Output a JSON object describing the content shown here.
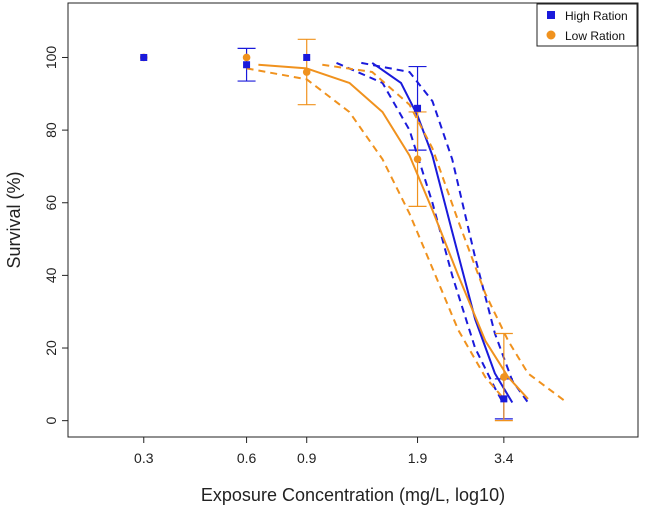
{
  "chart_data": {
    "type": "scatter",
    "title": "",
    "xlabel": "Exposure Concentration (mg/L, log10)",
    "ylabel": "Survival  (%)",
    "x_scale": "log10",
    "xlim": [
      0.18,
      8.4
    ],
    "ylim": [
      -4.5,
      115
    ],
    "x_ticks": [
      0.3,
      0.6,
      0.9,
      1.9,
      3.4
    ],
    "x_tick_labels": [
      "0.3",
      "0.6",
      "0.9",
      "1.9",
      "3.4"
    ],
    "y_ticks": [
      0,
      20,
      40,
      60,
      80,
      100
    ],
    "y_tick_labels": [
      "0",
      "20",
      "40",
      "60",
      "80",
      "100"
    ],
    "grid": false,
    "legend_position": "top-right",
    "series": [
      {
        "name": "High Ration",
        "color": "#1a1adb",
        "marker": "square",
        "x": [
          0.3,
          0.6,
          0.9,
          1.9,
          3.4
        ],
        "y": [
          100,
          98,
          100,
          86,
          6
        ],
        "err_low": [
          0,
          93.5,
          0,
          74.5,
          0.5
        ],
        "err_high": [
          0,
          102.5,
          0,
          97.5,
          11.5
        ],
        "fit": {
          "x": [
            1.4,
            1.7,
            1.9,
            2.1,
            2.4,
            2.8,
            3.2,
            3.6
          ],
          "y": [
            98.5,
            93,
            84,
            73,
            52,
            28,
            13,
            5
          ]
        },
        "ci_upper": {
          "x": [
            1.3,
            1.8,
            2.1,
            2.4,
            2.8,
            3.2,
            3.6,
            4.0
          ],
          "y": [
            98.5,
            96,
            88,
            72,
            45,
            24,
            11,
            5
          ]
        },
        "ci_lower": {
          "x": [
            1.1,
            1.5,
            1.8,
            2.1,
            2.4,
            2.8,
            3.2,
            3.4
          ],
          "y": [
            98.5,
            93,
            80,
            60,
            40,
            20,
            9,
            4.5
          ]
        }
      },
      {
        "name": "Low Ration",
        "color": "#f0921e",
        "marker": "circle",
        "x": [
          0.3,
          0.6,
          0.9,
          1.9,
          3.4
        ],
        "y": [
          100,
          100,
          96,
          72,
          12
        ],
        "err_low": [
          0,
          0,
          87,
          59,
          0
        ],
        "err_high": [
          0,
          0,
          105,
          85,
          24
        ],
        "fit": {
          "x": [
            0.65,
            0.9,
            1.2,
            1.5,
            1.8,
            2.1,
            2.5,
            3.0,
            3.5,
            4.0
          ],
          "y": [
            98,
            97,
            93,
            85,
            73,
            58,
            40,
            22,
            12,
            6
          ]
        },
        "ci_upper": {
          "x": [
            1.0,
            1.4,
            1.8,
            2.1,
            2.5,
            3.0,
            3.5,
            4.0,
            5.2
          ],
          "y": [
            98,
            96,
            87,
            75,
            55,
            35,
            22,
            13,
            5
          ]
        },
        "ci_lower": {
          "x": [
            0.6,
            0.9,
            1.2,
            1.5,
            1.8,
            2.1,
            2.5,
            3.0,
            3.4
          ],
          "y": [
            97,
            94,
            85,
            72,
            57,
            42,
            25,
            12,
            6
          ]
        }
      }
    ]
  }
}
